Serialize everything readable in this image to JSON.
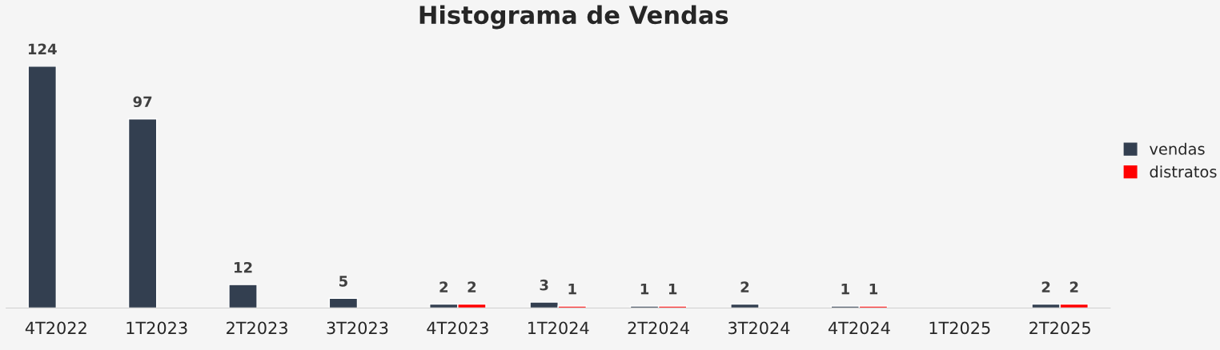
{
  "chart_data": {
    "type": "bar",
    "title": "Histograma de Vendas",
    "categories": [
      "4T2022",
      "1T2023",
      "2T2023",
      "3T2023",
      "4T2023",
      "1T2024",
      "2T2024",
      "3T2024",
      "4T2024",
      "1T2025",
      "2T2025"
    ],
    "series": [
      {
        "name": "vendas",
        "color": "#333f50",
        "values": [
          124,
          97,
          12,
          5,
          2,
          3,
          1,
          2,
          1,
          null,
          2
        ]
      },
      {
        "name": "distratos",
        "color": "#ff0000",
        "values": [
          null,
          null,
          null,
          null,
          2,
          1,
          1,
          null,
          1,
          null,
          2
        ]
      }
    ],
    "data_labels": true,
    "grid": false,
    "legend": "right"
  }
}
